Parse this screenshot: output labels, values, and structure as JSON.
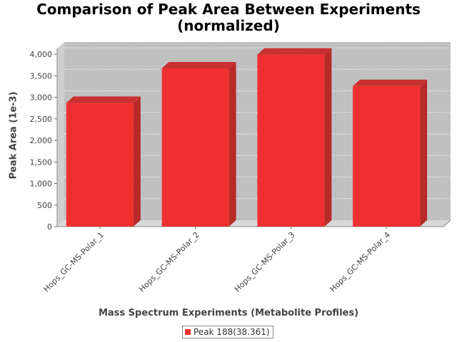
{
  "chart_data": {
    "type": "bar",
    "title": "Comparison of Peak Area Between Experiments (normalized)",
    "title_lines": [
      "Comparison of Peak Area Between Experiments",
      "(normalized)"
    ],
    "xlabel": "Mass Spectrum Experiments (Metabolite Profiles)",
    "ylabel": "Peak Area (1e-3)",
    "categories": [
      "Hops_GC-MS-Polar_1",
      "Hops_GC-MS-Polar_2",
      "Hops_GC-MS-Polar_3",
      "Hops_GC-MS-Polar_4"
    ],
    "series": [
      {
        "name": "Peak 188(38.361)",
        "values": [
          2870,
          3670,
          3990,
          3260
        ]
      }
    ],
    "ylim": [
      0,
      4000
    ],
    "yticks": [
      0,
      500,
      1000,
      1500,
      2000,
      2500,
      3000,
      3500,
      4000
    ],
    "ytick_labels": [
      "0",
      "500",
      "1,000",
      "1,500",
      "2,000",
      "2,500",
      "3,000",
      "3,500",
      "4,000"
    ],
    "grid": true,
    "legend_position": "bottom-center",
    "style": "3d",
    "colors": {
      "bar": "#f03030",
      "bar_side": "#b82a2a",
      "bar_top": "#c93030",
      "plot_bg": "#c0c0c0",
      "floor": "#d8d8d8"
    }
  }
}
